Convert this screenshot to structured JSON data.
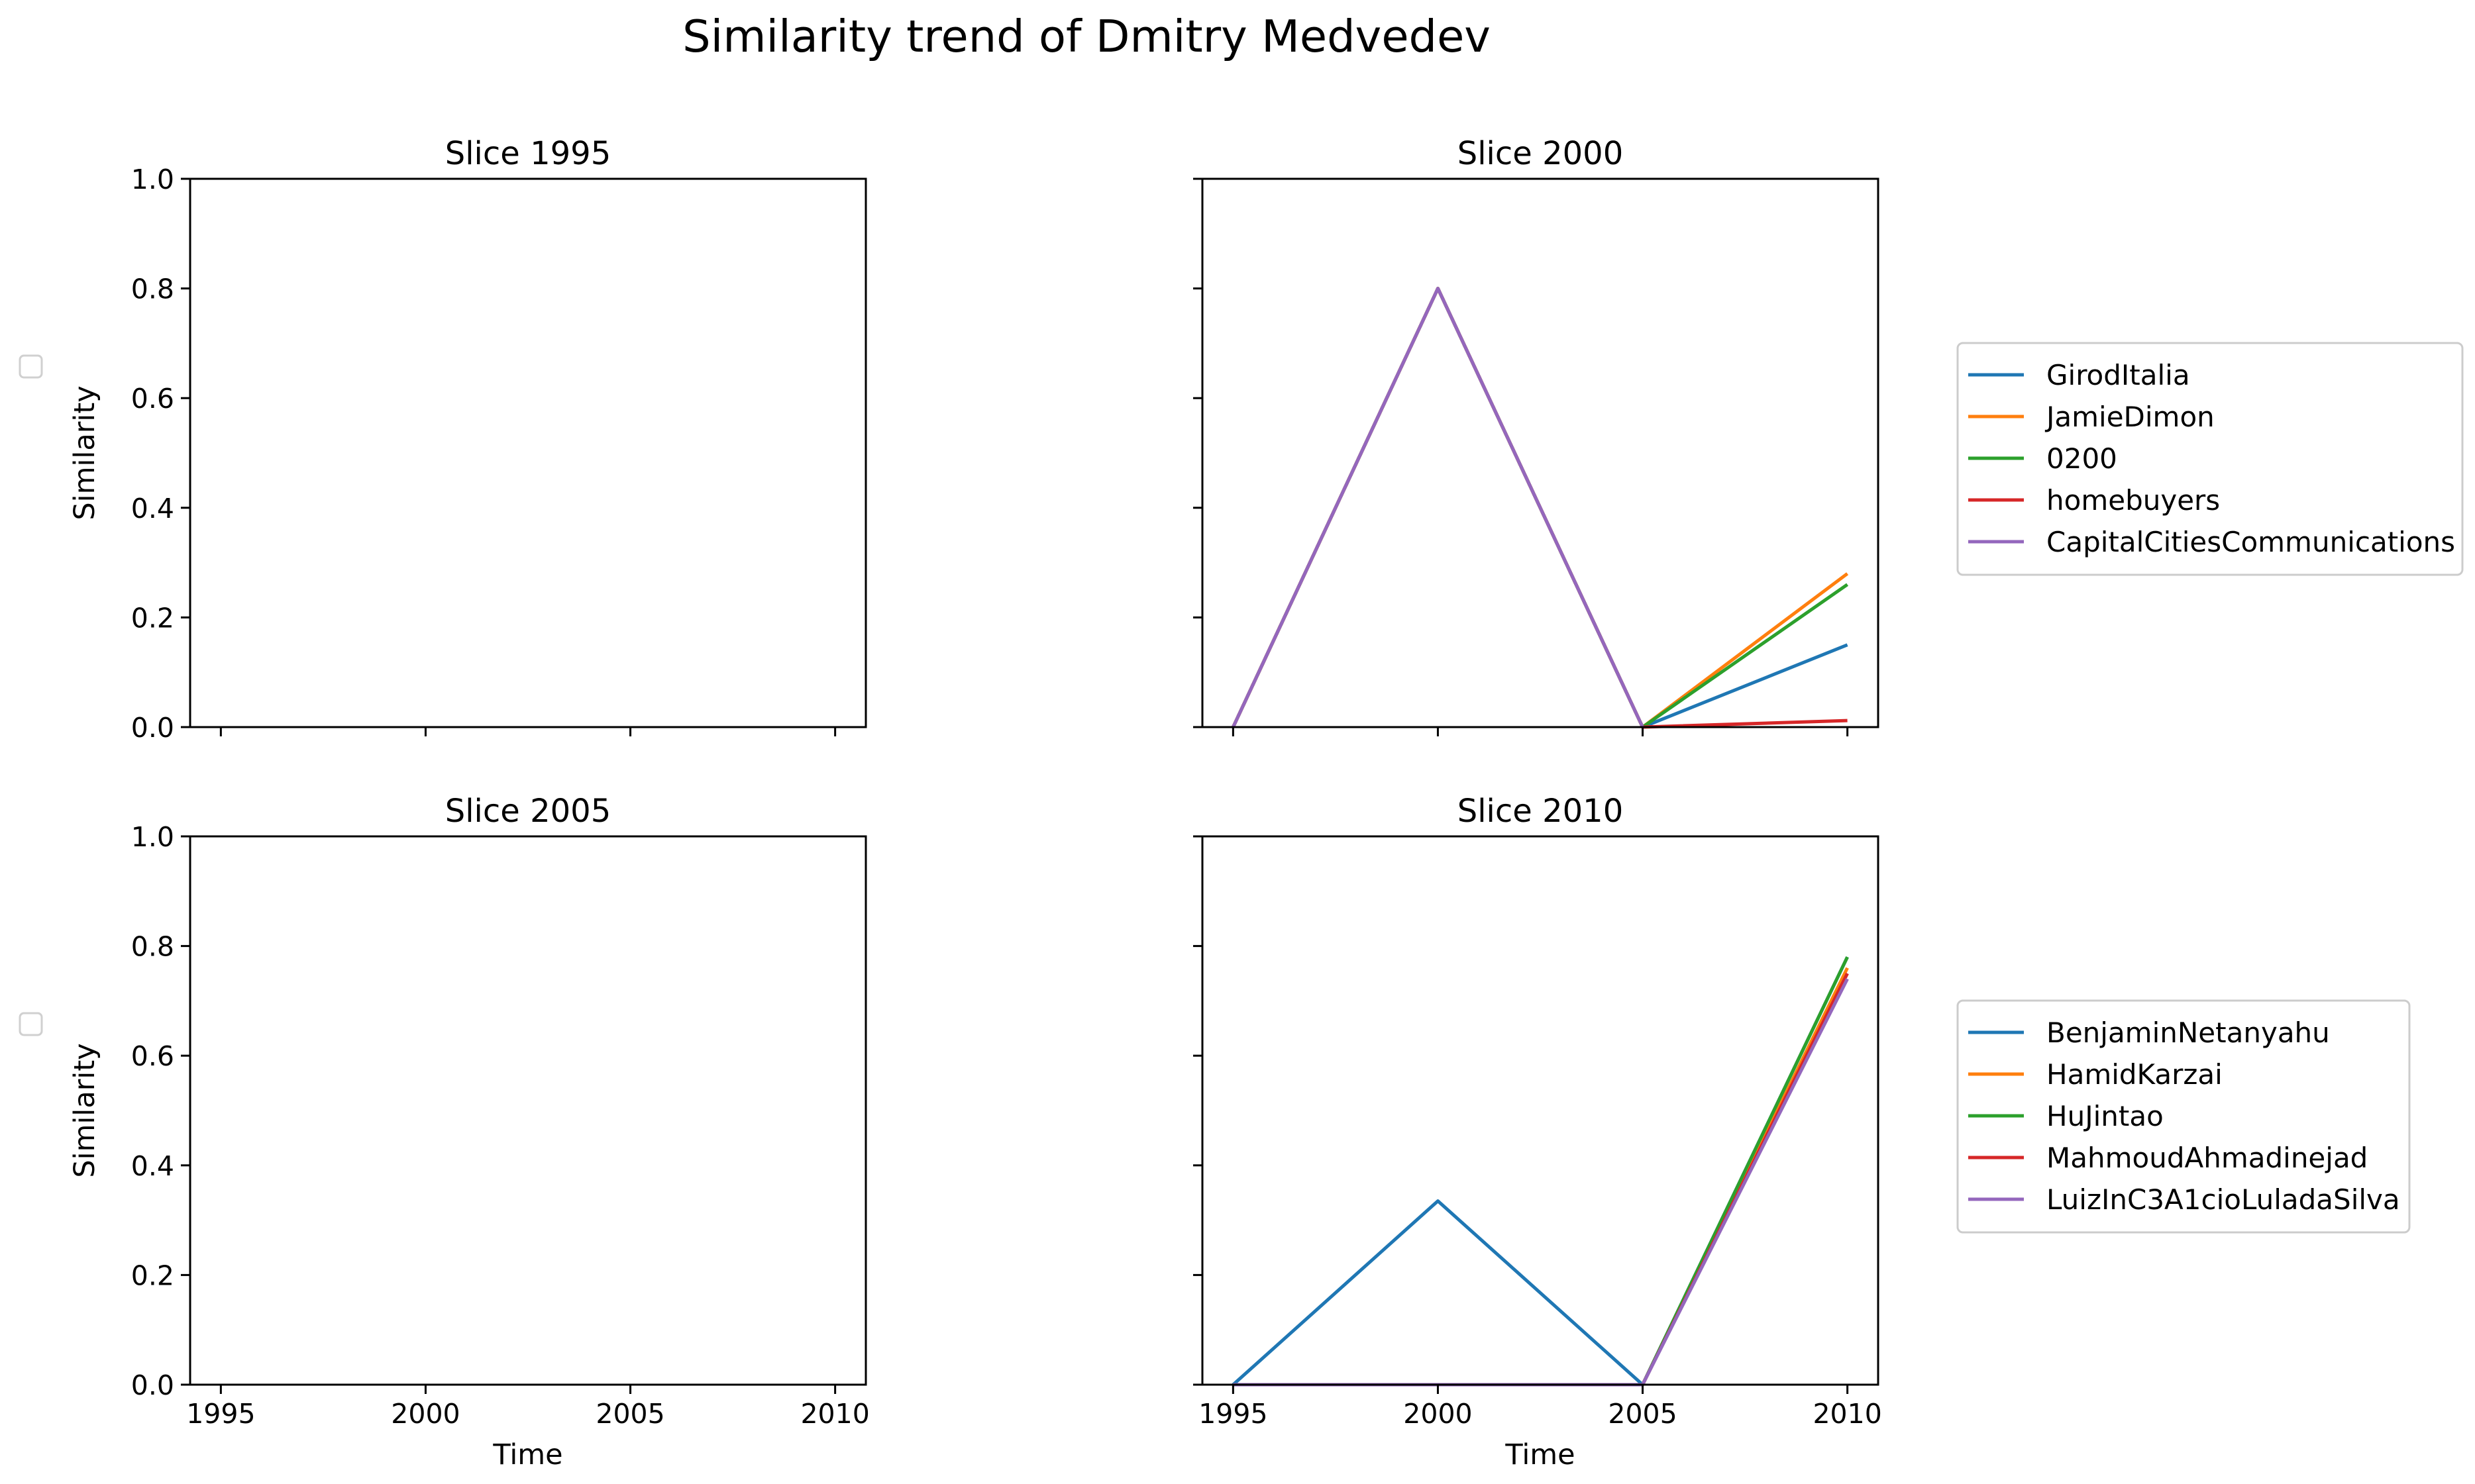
{
  "title": "Similarity trend of Dmitry Medvedev",
  "chart_data": [
    {
      "type": "line",
      "title": "Slice 1995",
      "xlabel": "",
      "ylabel": "Similarity",
      "x": [
        1995,
        2000,
        2005,
        2010
      ],
      "xticks": [
        "1995",
        "2000",
        "2005",
        "2010"
      ],
      "show_xticklabels": false,
      "yticks": [
        "0.0",
        "0.2",
        "0.4",
        "0.6",
        "0.8",
        "1.0"
      ],
      "show_yticklabels": true,
      "xlim": [
        1994.25,
        2010.75
      ],
      "ylim": [
        0,
        1
      ],
      "grid": false,
      "series": [],
      "legend": "empty legend box at left"
    },
    {
      "type": "line",
      "title": "Slice 2000",
      "xlabel": "",
      "ylabel": "",
      "x": [
        1995,
        2000,
        2005,
        2010
      ],
      "xticks": [
        "1995",
        "2000",
        "2005",
        "2010"
      ],
      "show_xticklabels": false,
      "yticks": [
        "0.0",
        "0.2",
        "0.4",
        "0.6",
        "0.8",
        "1.0"
      ],
      "show_yticklabels": false,
      "xlim": [
        1994.25,
        2010.75
      ],
      "ylim": [
        0,
        1
      ],
      "grid": false,
      "legend": "outside right",
      "series": [
        {
          "name": "GirodItalia",
          "color": "#1f77b4",
          "values": [
            0,
            0.8,
            0,
            0.15
          ]
        },
        {
          "name": "JamieDimon",
          "color": "#ff7f0e",
          "values": [
            0,
            0.8,
            0,
            0.28
          ]
        },
        {
          "name": "0200",
          "color": "#2ca02c",
          "values": [
            0,
            0.8,
            0,
            0.26
          ]
        },
        {
          "name": "homebuyers",
          "color": "#d62728",
          "values": [
            0,
            0.8,
            0,
            0.012
          ]
        },
        {
          "name": "CapitalCitiesCommunications",
          "color": "#9467bd",
          "values": [
            0,
            0.8,
            0,
            null
          ]
        }
      ]
    },
    {
      "type": "line",
      "title": "Slice 2005",
      "xlabel": "Time",
      "ylabel": "Similarity",
      "x": [
        1995,
        2000,
        2005,
        2010
      ],
      "xticks": [
        "1995",
        "2000",
        "2005",
        "2010"
      ],
      "show_xticklabels": true,
      "yticks": [
        "0.0",
        "0.2",
        "0.4",
        "0.6",
        "0.8",
        "1.0"
      ],
      "show_yticklabels": true,
      "xlim": [
        1994.25,
        2010.75
      ],
      "ylim": [
        0,
        1
      ],
      "grid": false,
      "series": [],
      "legend": "empty legend box at left"
    },
    {
      "type": "line",
      "title": "Slice 2010",
      "xlabel": "Time",
      "ylabel": "",
      "x": [
        1995,
        2000,
        2005,
        2010
      ],
      "xticks": [
        "1995",
        "2000",
        "2005",
        "2010"
      ],
      "show_xticklabels": true,
      "yticks": [
        "0.0",
        "0.2",
        "0.4",
        "0.6",
        "0.8",
        "1.0"
      ],
      "show_yticklabels": false,
      "xlim": [
        1994.25,
        2010.75
      ],
      "ylim": [
        0,
        1
      ],
      "grid": false,
      "legend": "outside right",
      "series": [
        {
          "name": "BenjaminNetanyahu",
          "color": "#1f77b4",
          "values": [
            0,
            0.335,
            0,
            0.78
          ]
        },
        {
          "name": "HamidKarzai",
          "color": "#ff7f0e",
          "values": [
            0,
            0,
            0,
            0.76
          ]
        },
        {
          "name": "HuJintao",
          "color": "#2ca02c",
          "values": [
            0,
            0,
            0,
            0.78
          ]
        },
        {
          "name": "MahmoudAhmadinejad",
          "color": "#d62728",
          "values": [
            0,
            0,
            0,
            0.75
          ]
        },
        {
          "name": "LuizInC3A1cioLuladaSilva",
          "color": "#9467bd",
          "values": [
            0,
            0,
            0,
            0.74
          ]
        }
      ]
    }
  ]
}
